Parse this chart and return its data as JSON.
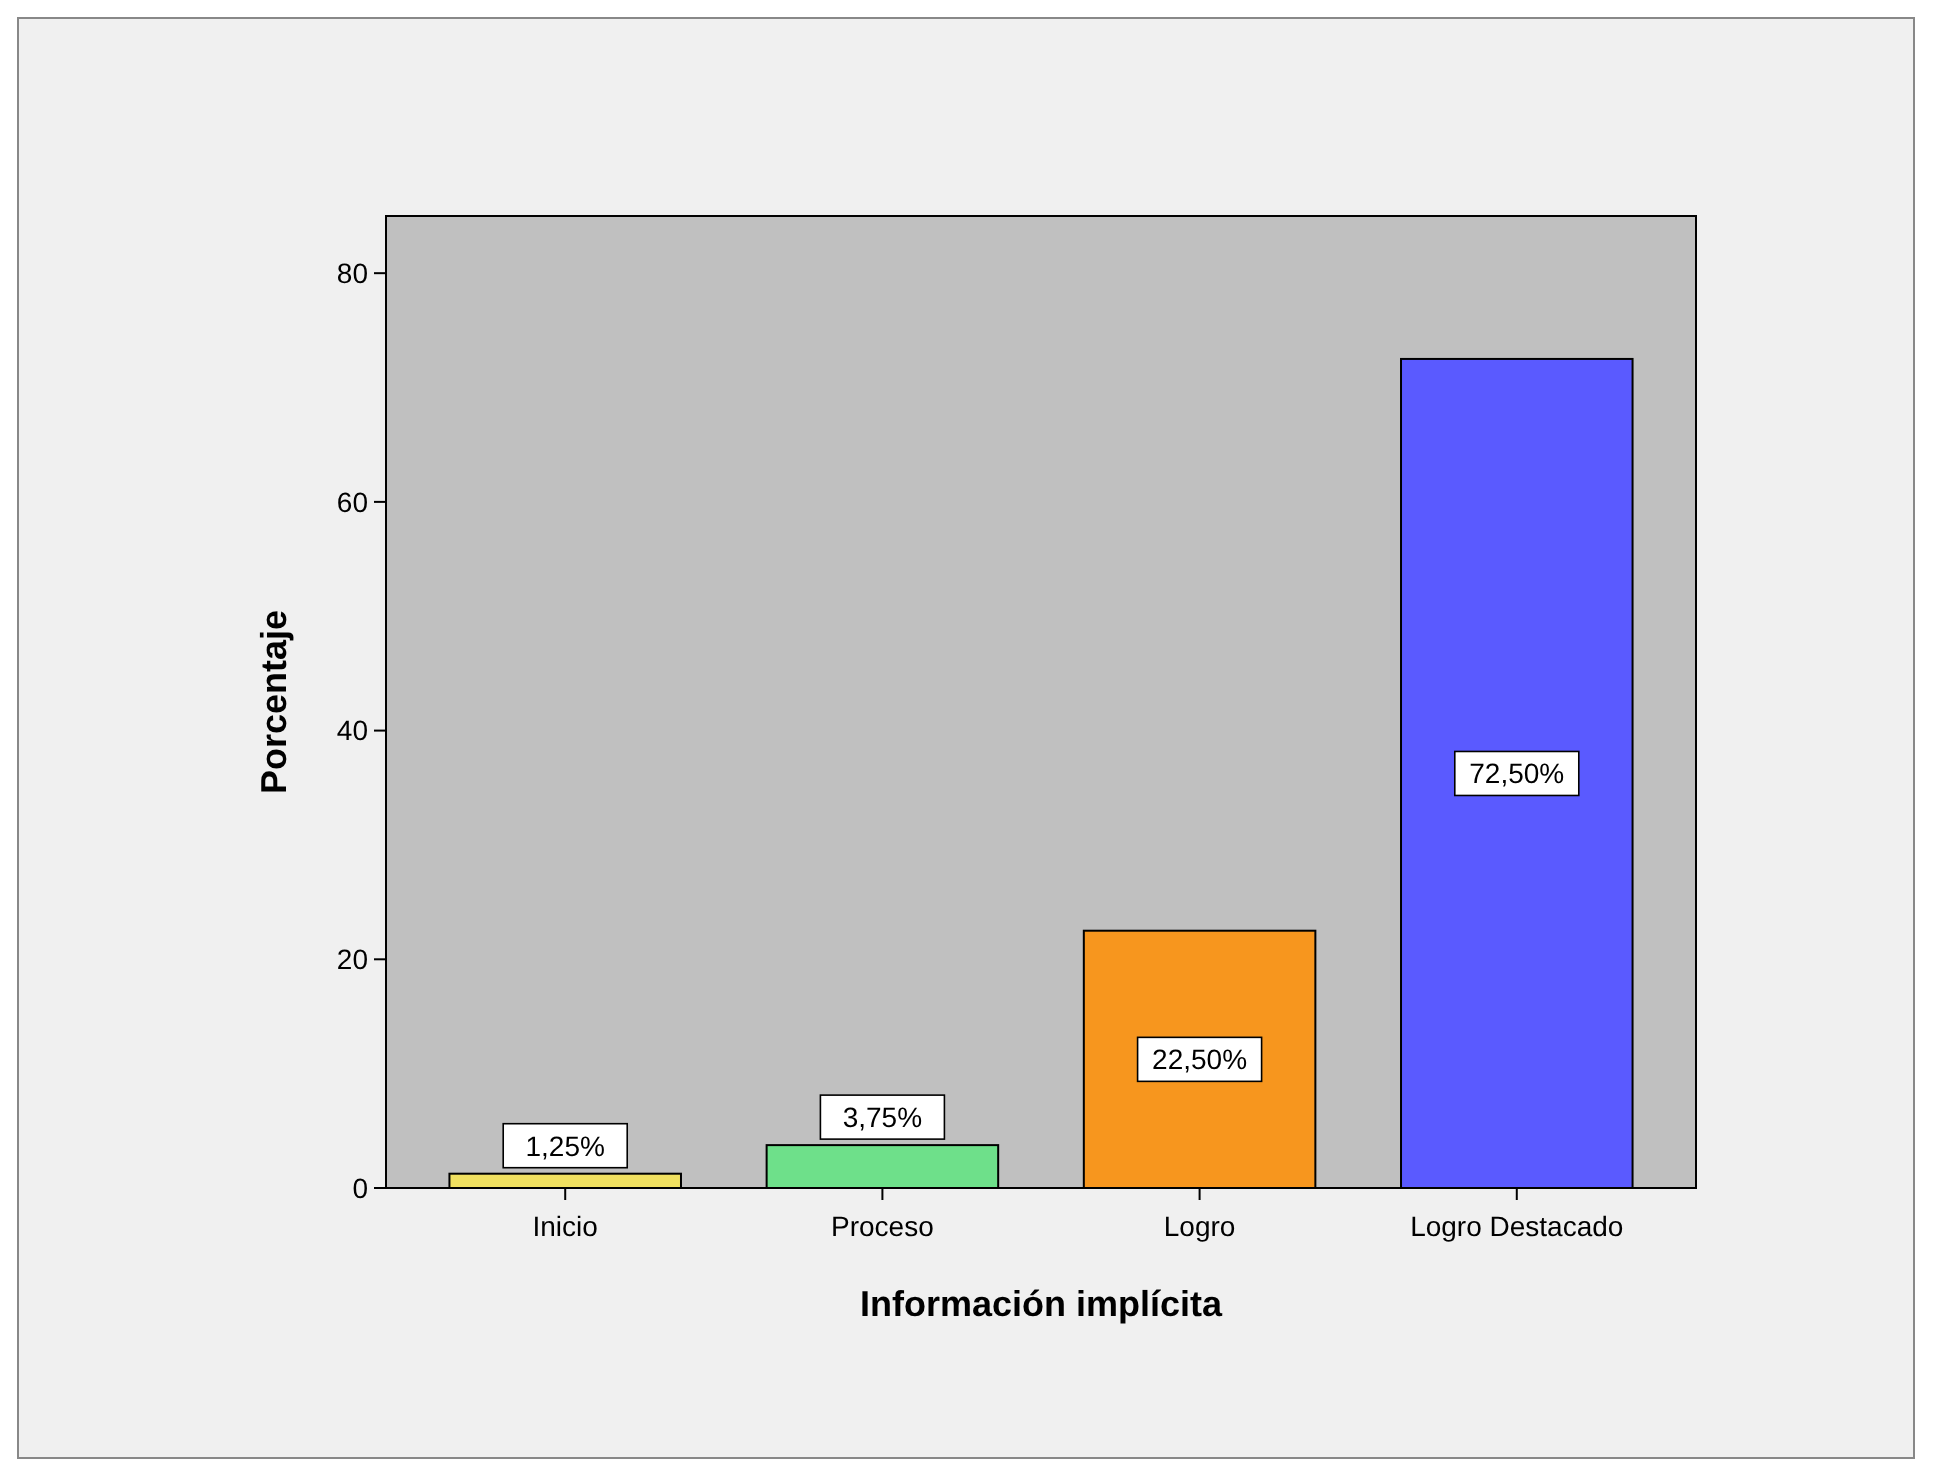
{
  "chart_data": {
    "type": "bar",
    "xlabel": "Información implícita",
    "ylabel": "Porcentaje",
    "categories": [
      "Inicio",
      "Proceso",
      "Logro",
      "Logro Destacado"
    ],
    "values": [
      1.25,
      3.75,
      22.5,
      72.5
    ],
    "colors": [
      "#f0e060",
      "#6ee08a",
      "#f7961e",
      "#5a5aff"
    ],
    "value_labels": [
      "1,25%",
      "3,75%",
      "22,50%",
      "72,50%"
    ],
    "ylim": [
      0,
      85
    ],
    "yticks": [
      0,
      20,
      40,
      60,
      80
    ],
    "grid": false
  }
}
